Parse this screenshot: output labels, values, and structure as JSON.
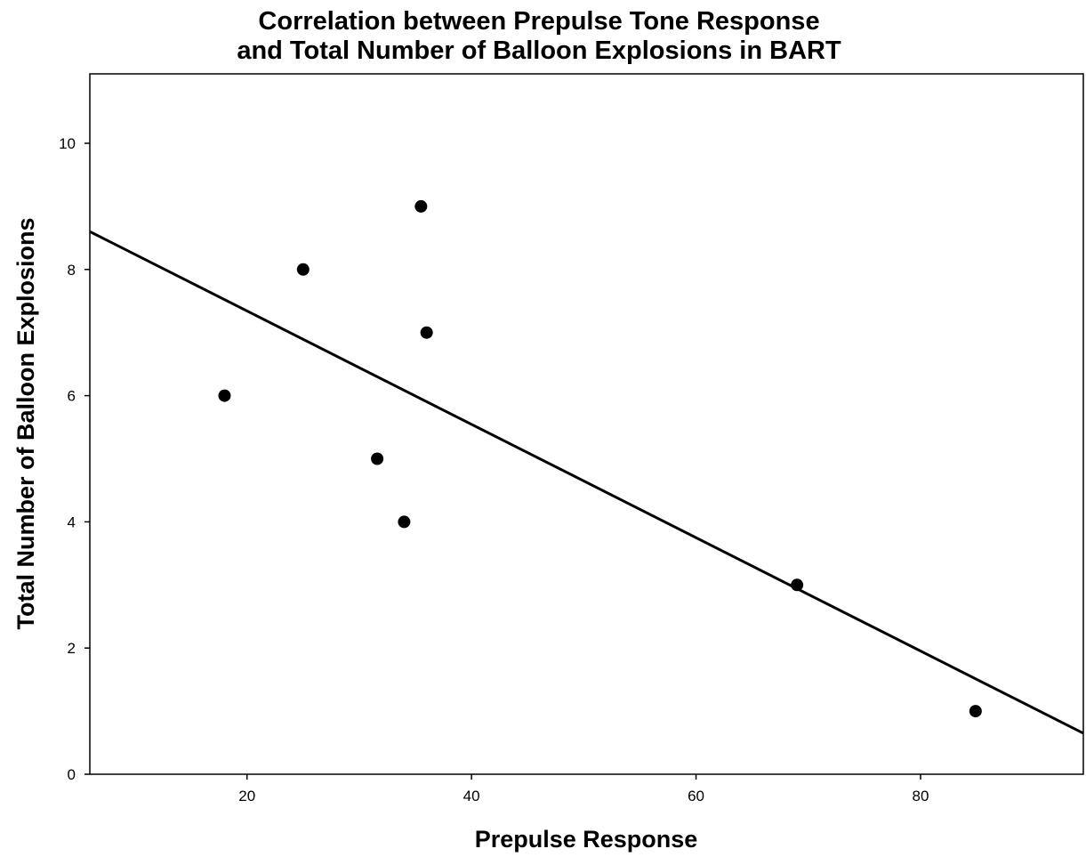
{
  "chart_data": {
    "type": "scatter",
    "title_lines": [
      "Correlation between Prepulse Tone Response",
      "and Total Number of Balloon Explosions in BART"
    ],
    "xlabel": "Prepulse Response",
    "ylabel": "Total Number of Balloon Explosions",
    "xlim": [
      6,
      94.5
    ],
    "ylim": [
      0,
      11.1
    ],
    "xticks": [
      20,
      40,
      60,
      80
    ],
    "yticks": [
      0,
      2,
      4,
      6,
      8,
      10
    ],
    "grid": false,
    "legend": "none",
    "points": [
      {
        "x": 18.0,
        "y": 6
      },
      {
        "x": 25.0,
        "y": 8
      },
      {
        "x": 31.6,
        "y": 5
      },
      {
        "x": 34.0,
        "y": 4
      },
      {
        "x": 35.5,
        "y": 9
      },
      {
        "x": 36.0,
        "y": 7
      },
      {
        "x": 69.0,
        "y": 3
      },
      {
        "x": 84.9,
        "y": 1
      }
    ],
    "fit_line": {
      "x": [
        6,
        94.5
      ],
      "y": [
        8.6,
        0.65
      ]
    },
    "colors": {
      "marker": "#000000",
      "line": "#000000",
      "frame": "#000000",
      "background": "#ffffff"
    }
  }
}
